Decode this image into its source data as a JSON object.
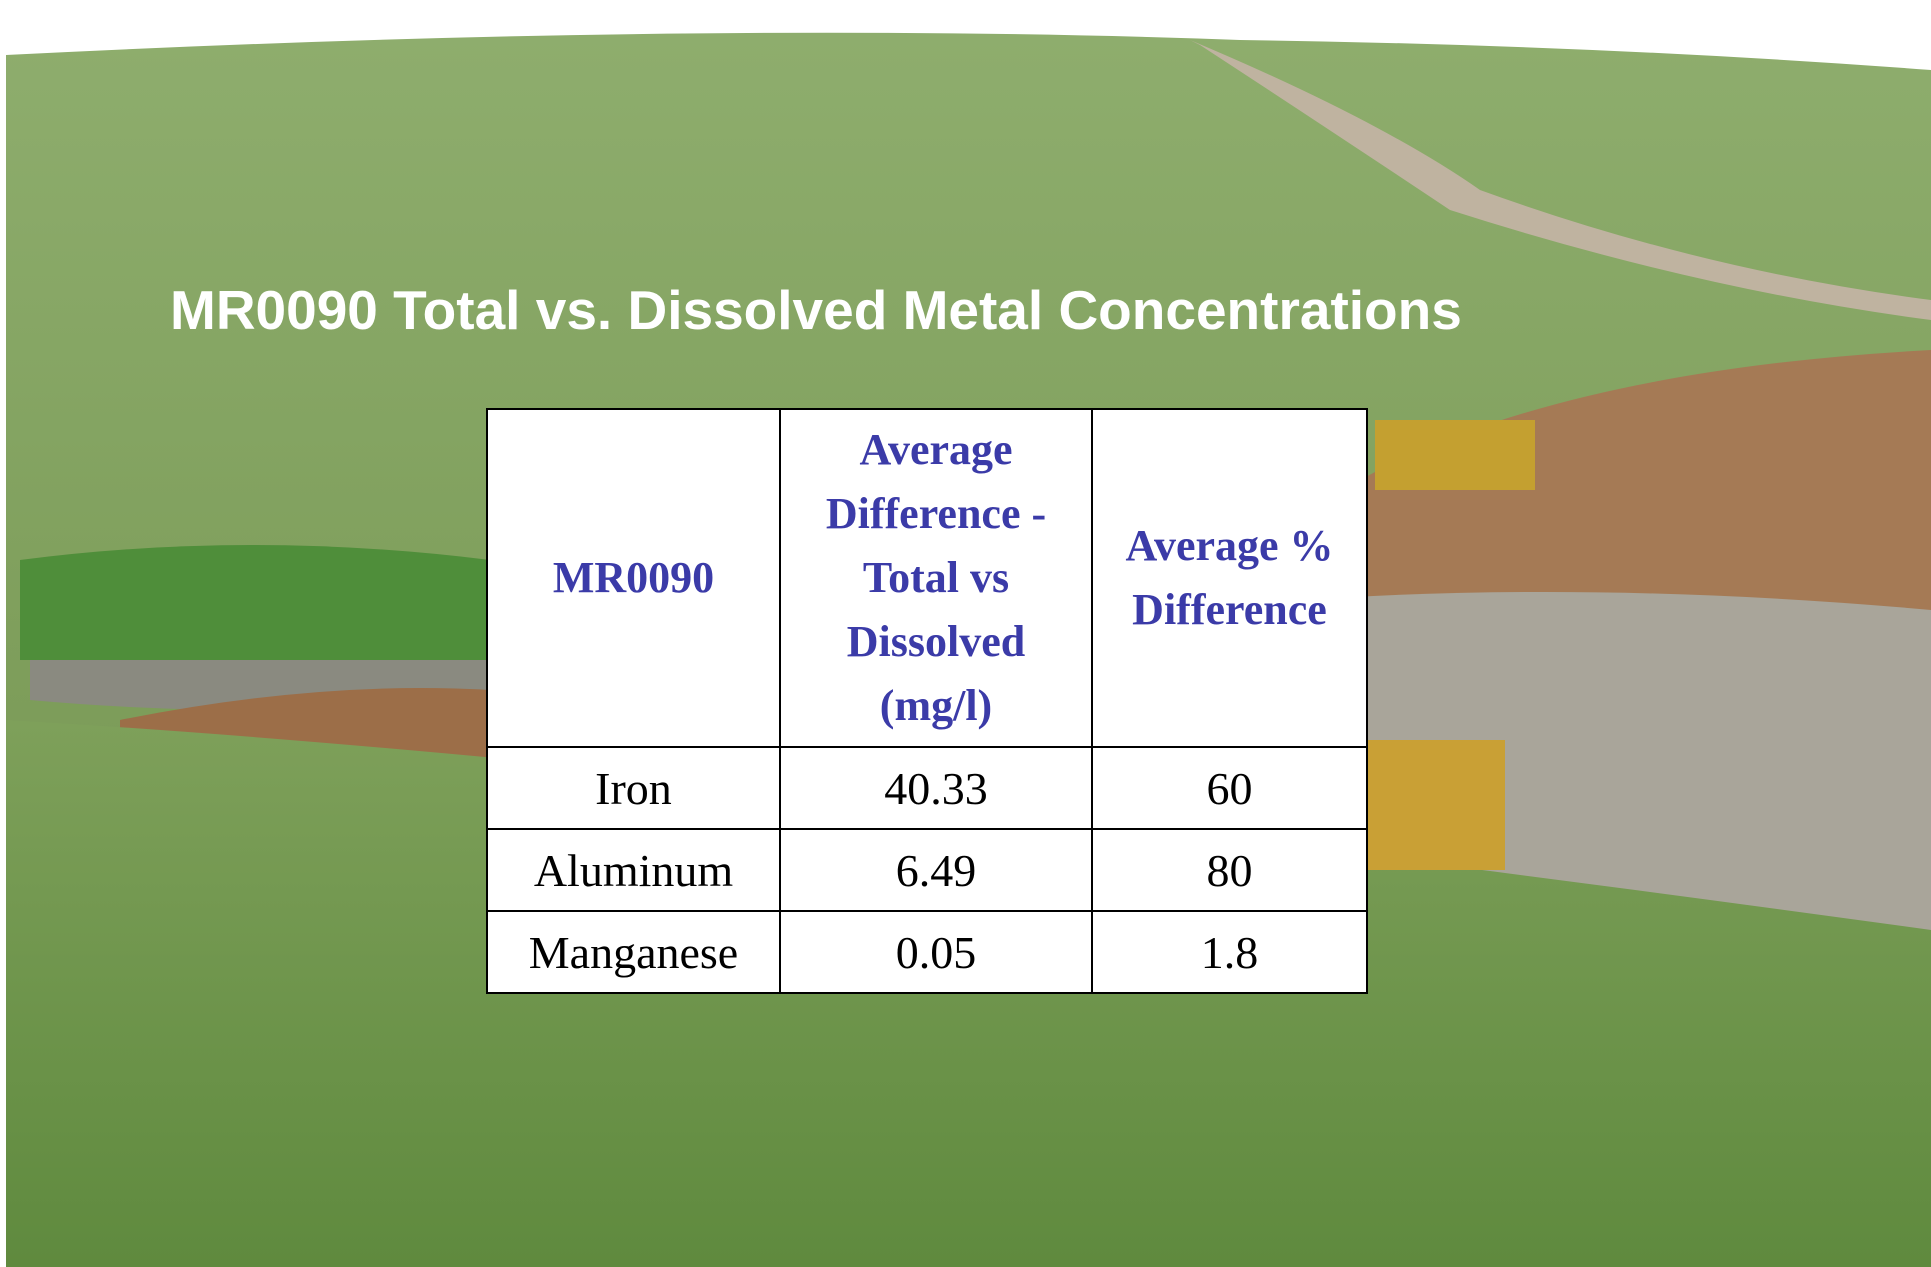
{
  "header": {
    "title": "MR0090 Total vs. Dissolved Metal Concentrations"
  },
  "table": {
    "columns": [
      "MR0090",
      "Average Difference - Total vs Dissolved (mg/l)",
      "Average % Difference"
    ],
    "rows": [
      [
        "Iron",
        "40.33",
        "60"
      ],
      [
        "Aluminum",
        "6.49",
        "80"
      ],
      [
        "Manganese",
        "0.05",
        "1.8"
      ]
    ]
  }
}
